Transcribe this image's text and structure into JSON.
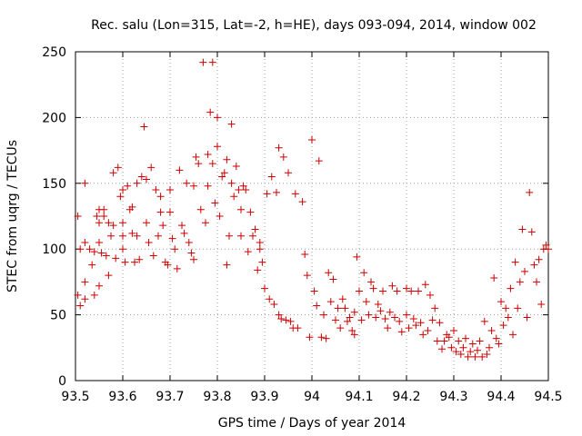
{
  "chart_data": {
    "type": "scatter",
    "title": "Rec. salu (Lon=315, Lat=-2, h=HE), days 093-094, 2014, window 002",
    "xlabel": "GPS time / Days of year 2014",
    "ylabel": "STEC from uqrg / TECUs",
    "xlim": [
      93.5,
      94.5
    ],
    "ylim": [
      0,
      250
    ],
    "xticks": [
      "93.5",
      "93.6",
      "93.7",
      "93.8",
      "93.9",
      "94",
      "94.1",
      "94.2",
      "94.3",
      "94.4",
      "94.5"
    ],
    "yticks": [
      "0",
      "50",
      "100",
      "150",
      "200",
      "250"
    ],
    "grid": true,
    "marker": "plus",
    "color": "#cc0000",
    "series": [
      {
        "points": [
          [
            93.505,
            125
          ],
          [
            93.51,
            100
          ],
          [
            93.505,
            65
          ],
          [
            93.51,
            57
          ],
          [
            93.52,
            150
          ],
          [
            93.52,
            105
          ],
          [
            93.52,
            75
          ],
          [
            93.52,
            62
          ],
          [
            93.53,
            100
          ],
          [
            93.535,
            88
          ],
          [
            93.54,
            98
          ],
          [
            93.54,
            65
          ],
          [
            93.545,
            125
          ],
          [
            93.55,
            130
          ],
          [
            93.55,
            120
          ],
          [
            93.55,
            105
          ],
          [
            93.55,
            72
          ],
          [
            93.555,
            97
          ],
          [
            93.56,
            130
          ],
          [
            93.56,
            125
          ],
          [
            93.565,
            95
          ],
          [
            93.57,
            120
          ],
          [
            93.57,
            80
          ],
          [
            93.575,
            110
          ],
          [
            93.58,
            158
          ],
          [
            93.58,
            118
          ],
          [
            93.585,
            93
          ],
          [
            93.59,
            162
          ],
          [
            93.595,
            140
          ],
          [
            93.6,
            145
          ],
          [
            93.6,
            120
          ],
          [
            93.6,
            110
          ],
          [
            93.6,
            100
          ],
          [
            93.605,
            90
          ],
          [
            93.61,
            148
          ],
          [
            93.615,
            130
          ],
          [
            93.62,
            132
          ],
          [
            93.62,
            112
          ],
          [
            93.625,
            90
          ],
          [
            93.63,
            150
          ],
          [
            93.63,
            110
          ],
          [
            93.635,
            92
          ],
          [
            93.64,
            155
          ],
          [
            93.645,
            193
          ],
          [
            93.65,
            153
          ],
          [
            93.65,
            120
          ],
          [
            93.655,
            105
          ],
          [
            93.66,
            162
          ],
          [
            93.665,
            95
          ],
          [
            93.67,
            145
          ],
          [
            93.675,
            110
          ],
          [
            93.68,
            140
          ],
          [
            93.68,
            128
          ],
          [
            93.685,
            118
          ],
          [
            93.69,
            90
          ],
          [
            93.695,
            88
          ],
          [
            93.7,
            145
          ],
          [
            93.7,
            128
          ],
          [
            93.705,
            108
          ],
          [
            93.71,
            100
          ],
          [
            93.715,
            85
          ],
          [
            93.72,
            160
          ],
          [
            93.725,
            118
          ],
          [
            93.73,
            112
          ],
          [
            93.735,
            150
          ],
          [
            93.74,
            105
          ],
          [
            93.745,
            97
          ],
          [
            93.75,
            148
          ],
          [
            93.75,
            92
          ],
          [
            93.755,
            170
          ],
          [
            93.76,
            165
          ],
          [
            93.765,
            130
          ],
          [
            93.77,
            242
          ],
          [
            93.775,
            120
          ],
          [
            93.78,
            172
          ],
          [
            93.78,
            148
          ],
          [
            93.785,
            204
          ],
          [
            93.79,
            242
          ],
          [
            93.79,
            165
          ],
          [
            93.795,
            135
          ],
          [
            93.8,
            200
          ],
          [
            93.8,
            178
          ],
          [
            93.805,
            125
          ],
          [
            93.81,
            155
          ],
          [
            93.815,
            158
          ],
          [
            93.82,
            168
          ],
          [
            93.82,
            88
          ],
          [
            93.825,
            110
          ],
          [
            93.83,
            195
          ],
          [
            93.83,
            150
          ],
          [
            93.835,
            140
          ],
          [
            93.84,
            163
          ],
          [
            93.845,
            145
          ],
          [
            93.85,
            130
          ],
          [
            93.85,
            110
          ],
          [
            93.855,
            148
          ],
          [
            93.86,
            145
          ],
          [
            93.865,
            98
          ],
          [
            93.87,
            128
          ],
          [
            93.875,
            110
          ],
          [
            93.88,
            115
          ],
          [
            93.885,
            84
          ],
          [
            93.89,
            105
          ],
          [
            93.89,
            100
          ],
          [
            93.895,
            90
          ],
          [
            93.9,
            70
          ],
          [
            93.905,
            142
          ],
          [
            93.91,
            62
          ],
          [
            93.915,
            155
          ],
          [
            93.92,
            58
          ],
          [
            93.925,
            143
          ],
          [
            93.93,
            177
          ],
          [
            93.93,
            50
          ],
          [
            93.935,
            47
          ],
          [
            93.94,
            170
          ],
          [
            93.945,
            46
          ],
          [
            93.95,
            158
          ],
          [
            93.955,
            45
          ],
          [
            93.96,
            40
          ],
          [
            93.965,
            142
          ],
          [
            93.97,
            40
          ],
          [
            93.98,
            136
          ],
          [
            93.985,
            96
          ],
          [
            93.99,
            80
          ],
          [
            93.995,
            33
          ],
          [
            94,
            183
          ],
          [
            94.005,
            68
          ],
          [
            94.01,
            57
          ],
          [
            94.015,
            167
          ],
          [
            94.02,
            33
          ],
          [
            94.025,
            50
          ],
          [
            94.03,
            32
          ],
          [
            94.035,
            82
          ],
          [
            94.04,
            60
          ],
          [
            94.045,
            77
          ],
          [
            94.05,
            46
          ],
          [
            94.055,
            55
          ],
          [
            94.06,
            40
          ],
          [
            94.065,
            62
          ],
          [
            94.07,
            55
          ],
          [
            94.075,
            45
          ],
          [
            94.08,
            48
          ],
          [
            94.085,
            38
          ],
          [
            94.09,
            52
          ],
          [
            94.09,
            35
          ],
          [
            94.095,
            94
          ],
          [
            94.1,
            68
          ],
          [
            94.105,
            46
          ],
          [
            94.11,
            82
          ],
          [
            94.115,
            60
          ],
          [
            94.12,
            50
          ],
          [
            94.125,
            75
          ],
          [
            94.13,
            70
          ],
          [
            94.135,
            48
          ],
          [
            94.14,
            58
          ],
          [
            94.145,
            53
          ],
          [
            94.15,
            68
          ],
          [
            94.155,
            47
          ],
          [
            94.16,
            40
          ],
          [
            94.165,
            52
          ],
          [
            94.17,
            72
          ],
          [
            94.175,
            48
          ],
          [
            94.18,
            68
          ],
          [
            94.185,
            45
          ],
          [
            94.19,
            37
          ],
          [
            94.2,
            70
          ],
          [
            94.2,
            50
          ],
          [
            94.205,
            40
          ],
          [
            94.21,
            68
          ],
          [
            94.215,
            47
          ],
          [
            94.22,
            42
          ],
          [
            94.225,
            68
          ],
          [
            94.23,
            44
          ],
          [
            94.235,
            35
          ],
          [
            94.24,
            73
          ],
          [
            94.245,
            38
          ],
          [
            94.25,
            65
          ],
          [
            94.255,
            46
          ],
          [
            94.26,
            55
          ],
          [
            94.265,
            30
          ],
          [
            94.27,
            44
          ],
          [
            94.275,
            24
          ],
          [
            94.28,
            30
          ],
          [
            94.285,
            35
          ],
          [
            94.29,
            33
          ],
          [
            94.295,
            25
          ],
          [
            94.3,
            38
          ],
          [
            94.305,
            22
          ],
          [
            94.31,
            30
          ],
          [
            94.315,
            20
          ],
          [
            94.32,
            25
          ],
          [
            94.325,
            32
          ],
          [
            94.33,
            18
          ],
          [
            94.335,
            22
          ],
          [
            94.34,
            28
          ],
          [
            94.345,
            18
          ],
          [
            94.35,
            23
          ],
          [
            94.355,
            30
          ],
          [
            94.36,
            18
          ],
          [
            94.365,
            45
          ],
          [
            94.37,
            20
          ],
          [
            94.375,
            25
          ],
          [
            94.38,
            38
          ],
          [
            94.385,
            78
          ],
          [
            94.39,
            32
          ],
          [
            94.395,
            28
          ],
          [
            94.4,
            60
          ],
          [
            94.405,
            42
          ],
          [
            94.41,
            55
          ],
          [
            94.415,
            48
          ],
          [
            94.42,
            70
          ],
          [
            94.425,
            35
          ],
          [
            94.43,
            90
          ],
          [
            94.435,
            55
          ],
          [
            94.44,
            75
          ],
          [
            94.445,
            115
          ],
          [
            94.45,
            83
          ],
          [
            94.455,
            48
          ],
          [
            94.46,
            143
          ],
          [
            94.465,
            113
          ],
          [
            94.47,
            88
          ],
          [
            94.475,
            75
          ],
          [
            94.48,
            92
          ],
          [
            94.485,
            58
          ],
          [
            94.49,
            100
          ],
          [
            94.495,
            103
          ],
          [
            94.5,
            100
          ]
        ]
      }
    ]
  }
}
